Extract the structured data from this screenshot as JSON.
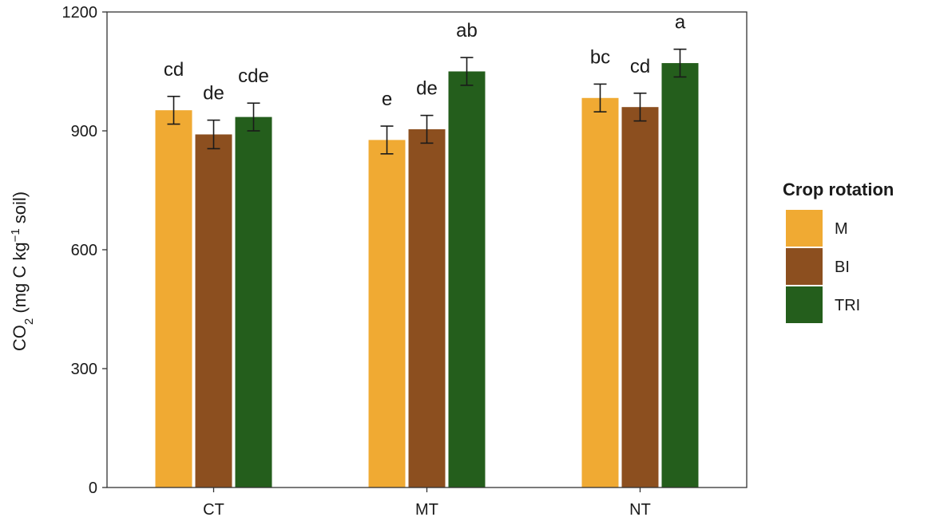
{
  "chart_data": {
    "type": "bar",
    "title": "",
    "xlabel": "",
    "ylabel": {
      "main": "CO",
      "sub": "2",
      "paren_open": " (mg C  kg",
      "sup": "−1",
      "paren_close": " soil)"
    },
    "ylim": [
      0,
      1200
    ],
    "yticks": [
      "0",
      "300",
      "600",
      "900",
      "1200"
    ],
    "ytick_values": [
      0,
      300,
      600,
      900,
      1200
    ],
    "categories": [
      "CT",
      "MT",
      "NT"
    ],
    "grid": false,
    "legend": {
      "title": "Crop rotation",
      "position": "right"
    },
    "series": [
      {
        "name": "M",
        "color": "#F0AA33",
        "values": [
          952,
          877,
          983
        ],
        "errors": [
          35,
          35,
          35
        ],
        "letters": [
          "cd",
          "e",
          "bc"
        ]
      },
      {
        "name": "BI",
        "color": "#8C4F1F",
        "values": [
          891,
          904,
          960
        ],
        "errors": [
          36,
          35,
          35
        ],
        "letters": [
          "de",
          "de",
          "cd"
        ]
      },
      {
        "name": "TRI",
        "color": "#245E1C",
        "values": [
          935,
          1050,
          1071
        ],
        "errors": [
          35,
          35,
          35
        ],
        "letters": [
          "cde",
          "ab",
          "a"
        ]
      }
    ]
  }
}
